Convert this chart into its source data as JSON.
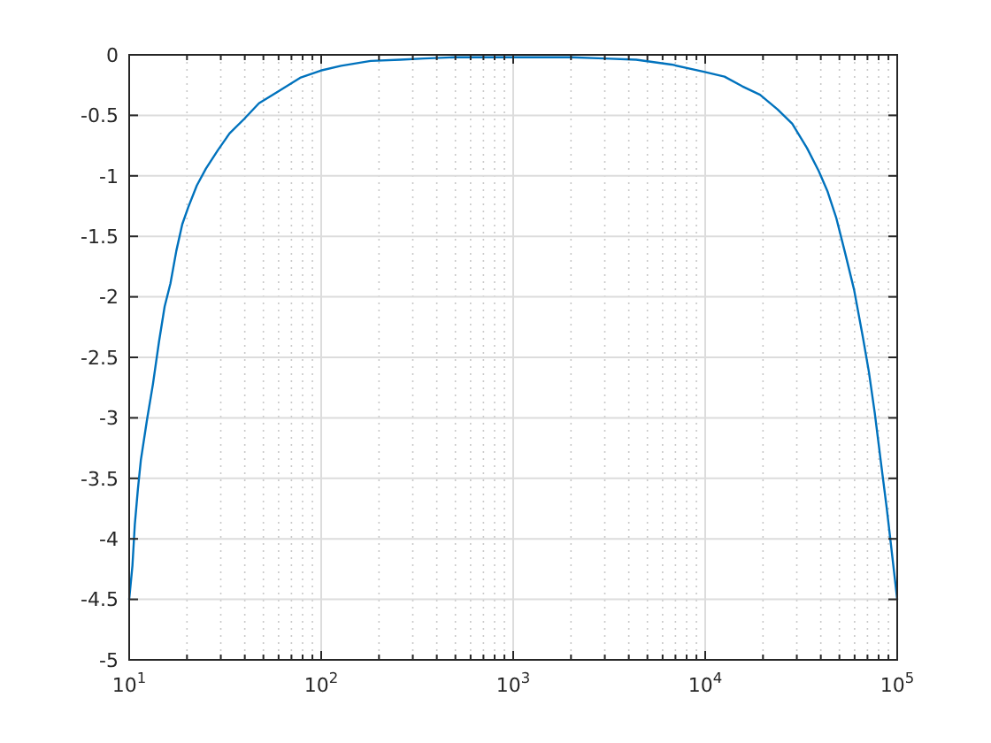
{
  "chart_data": {
    "type": "line",
    "log": "x",
    "grid": true,
    "color": "#0072bd",
    "x": [
      10,
      10.4,
      10.7,
      11.1,
      11.5,
      12.4,
      13.3,
      14.3,
      15.3,
      16.4,
      17.6,
      18.9,
      20.3,
      22.5,
      25.1,
      28.9,
      33.3,
      39.7,
      47.4,
      58.6,
      77.7,
      99.5,
      127,
      181,
      258,
      343,
      500,
      1000,
      2000,
      3000,
      4370,
      6670,
      9840,
      12600,
      15600,
      19300,
      23800,
      28400,
      33900,
      39000,
      43400,
      48200,
      53600,
      59600,
      66200,
      71200,
      76400,
      82000,
      88100,
      92500,
      100000
    ],
    "values": [
      -4.5,
      -4.22,
      -3.88,
      -3.59,
      -3.35,
      -3.01,
      -2.72,
      -2.37,
      -2.08,
      -1.89,
      -1.62,
      -1.4,
      -1.26,
      -1.08,
      -0.94,
      -0.79,
      -0.65,
      -0.53,
      -0.4,
      -0.31,
      -0.19,
      -0.13,
      -0.09,
      -0.05,
      -0.04,
      -0.03,
      -0.02,
      -0.02,
      -0.02,
      -0.03,
      -0.04,
      -0.08,
      -0.14,
      -0.18,
      -0.26,
      -0.33,
      -0.45,
      -0.57,
      -0.77,
      -0.96,
      -1.13,
      -1.35,
      -1.64,
      -1.94,
      -2.33,
      -2.62,
      -2.96,
      -3.35,
      -3.74,
      -4.03,
      -4.5
    ],
    "xlim": [
      10,
      100000
    ],
    "ylim": [
      -5,
      0
    ],
    "xticks": [
      {
        "value": 10,
        "label": "10$^{1}$"
      },
      {
        "value": 20,
        "label": null
      },
      {
        "value": 30,
        "label": null
      },
      {
        "value": 40,
        "label": null
      },
      {
        "value": 50,
        "label": null
      },
      {
        "value": 60,
        "label": null
      },
      {
        "value": 70,
        "label": null
      },
      {
        "value": 80,
        "label": null
      },
      {
        "value": 90,
        "label": null
      },
      {
        "value": 100,
        "label": "10$^{2}$"
      },
      {
        "value": 200,
        "label": null
      },
      {
        "value": 300,
        "label": null
      },
      {
        "value": 400,
        "label": null
      },
      {
        "value": 500,
        "label": null
      },
      {
        "value": 600,
        "label": null
      },
      {
        "value": 700,
        "label": null
      },
      {
        "value": 800,
        "label": null
      },
      {
        "value": 900,
        "label": null
      },
      {
        "value": 1000,
        "label": "10$^{3}$"
      },
      {
        "value": 2000,
        "label": null
      },
      {
        "value": 3000,
        "label": null
      },
      {
        "value": 4000,
        "label": null
      },
      {
        "value": 5000,
        "label": null
      },
      {
        "value": 6000,
        "label": null
      },
      {
        "value": 7000,
        "label": null
      },
      {
        "value": 8000,
        "label": null
      },
      {
        "value": 9000,
        "label": null
      },
      {
        "value": 10000,
        "label": "10$^{4}$"
      },
      {
        "value": 20000,
        "label": null
      },
      {
        "value": 30000,
        "label": null
      },
      {
        "value": 40000,
        "label": null
      },
      {
        "value": 50000,
        "label": null
      },
      {
        "value": 60000,
        "label": null
      },
      {
        "value": 70000,
        "label": null
      },
      {
        "value": 80000,
        "label": null
      },
      {
        "value": 90000,
        "label": null
      },
      {
        "value": 100000,
        "label": "10$^{5}$"
      }
    ],
    "yticks": [
      -5,
      -4.5,
      -4,
      -3.5,
      -3,
      -2.5,
      -2,
      -1.5,
      -1,
      -0.5,
      0
    ]
  }
}
